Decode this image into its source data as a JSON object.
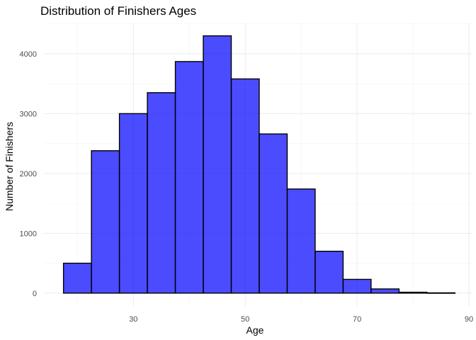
{
  "chart_data": {
    "type": "bar",
    "title": "Distribution of Finishers Ages",
    "xlabel": "Age",
    "ylabel": "Number of Finishers",
    "bin_width": 5,
    "bins": [
      {
        "x0": 17.5,
        "x1": 22.5,
        "count": 500
      },
      {
        "x0": 22.5,
        "x1": 27.5,
        "count": 2380
      },
      {
        "x0": 27.5,
        "x1": 32.5,
        "count": 3000
      },
      {
        "x0": 32.5,
        "x1": 37.5,
        "count": 3350
      },
      {
        "x0": 37.5,
        "x1": 42.5,
        "count": 3870
      },
      {
        "x0": 42.5,
        "x1": 47.5,
        "count": 4300
      },
      {
        "x0": 47.5,
        "x1": 52.5,
        "count": 3580
      },
      {
        "x0": 52.5,
        "x1": 57.5,
        "count": 2660
      },
      {
        "x0": 57.5,
        "x1": 62.5,
        "count": 1740
      },
      {
        "x0": 62.5,
        "x1": 67.5,
        "count": 700
      },
      {
        "x0": 67.5,
        "x1": 72.5,
        "count": 230
      },
      {
        "x0": 72.5,
        "x1": 77.5,
        "count": 70
      },
      {
        "x0": 77.5,
        "x1": 82.5,
        "count": 15
      },
      {
        "x0": 82.5,
        "x1": 87.5,
        "count": 5
      }
    ],
    "xlim": [
      14,
      90.5
    ],
    "ylim": [
      -215,
      4520
    ],
    "x_ticks": [
      30,
      50,
      70,
      90
    ],
    "y_ticks": [
      0,
      1000,
      2000,
      3000,
      4000
    ],
    "fill_color": "#0000ff",
    "fill_opacity": 0.7,
    "stroke_color": "#000000",
    "grid": true,
    "legend": "none"
  }
}
